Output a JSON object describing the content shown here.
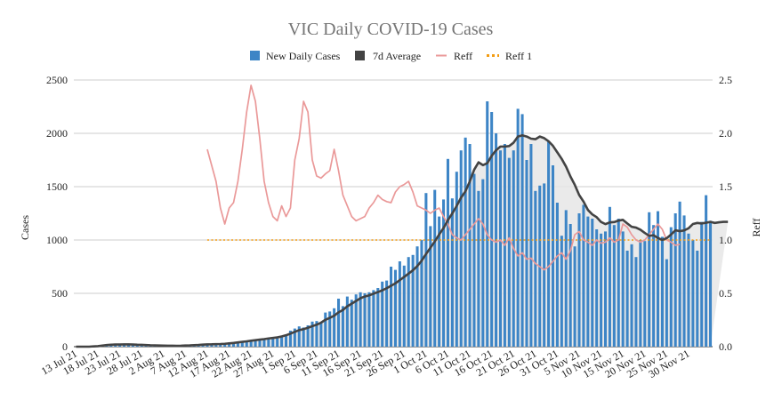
{
  "chart_data": {
    "type": "bar",
    "title": "VIC Daily COVID-19 Cases",
    "xlabel": "",
    "ylabel": "Cases",
    "y2label": "Reff",
    "ylim": [
      0,
      2500
    ],
    "y2lim": [
      0,
      2.5
    ],
    "y_ticks": [
      "0",
      "500",
      "1000",
      "1500",
      "2000",
      "2500"
    ],
    "y2_ticks": [
      "0.0",
      "0.5",
      "1.0",
      "1.5",
      "2.0",
      "2.5"
    ],
    "start_date": "13 Jul 21",
    "x_tick_labels": [
      "13 Jul 21",
      "18 Jul 21",
      "23 Jul 21",
      "28 Jul 21",
      "2 Aug 21",
      "7 Aug 21",
      "12 Aug 21",
      "17 Aug 21",
      "22 Aug 21",
      "27 Aug 21",
      "1 Sep 21",
      "6 Sep 21",
      "11 Sep 21",
      "16 Sep 21",
      "21 Sep 21",
      "26 Sep 21",
      "1 Oct 21",
      "6 Oct 21",
      "11 Oct 21",
      "16 Oct 21",
      "21 Oct 21",
      "26 Oct 21",
      "31 Oct 21",
      "5 Nov 21",
      "10 Nov 21",
      "15 Nov 21",
      "20 Nov 21",
      "25 Nov 21",
      "30 Nov 21"
    ],
    "x_tick_step_days": 5,
    "legend": [
      "New Daily Cases",
      "7d Average",
      "Reff",
      "Reff 1"
    ],
    "colors": {
      "bars": "#3d85c6",
      "avg": "#434343",
      "reff": "#ea9999",
      "reff1": "#f39c12",
      "fill": "#e6e6e6",
      "grid": "#cccccc",
      "title": "#757575"
    },
    "series": [
      {
        "name": "New Daily Cases",
        "values": [
          0,
          0,
          0,
          0,
          3,
          5,
          10,
          15,
          20,
          25,
          22,
          18,
          20,
          15,
          12,
          10,
          15,
          8,
          5,
          5,
          10,
          8,
          3,
          5,
          8,
          12,
          20,
          15,
          18,
          22,
          25,
          21,
          24,
          25,
          30,
          40,
          38,
          45,
          50,
          55,
          60,
          57,
          65,
          70,
          72,
          80,
          78,
          95,
          110,
          150,
          170,
          190,
          180,
          200,
          235,
          240,
          220,
          320,
          330,
          360,
          450,
          380,
          470,
          440,
          490,
          510,
          500,
          510,
          530,
          550,
          610,
          620,
          750,
          720,
          800,
          760,
          840,
          860,
          940,
          1000,
          1440,
          1130,
          1470,
          1220,
          1380,
          1760,
          1390,
          1640,
          1840,
          1960,
          1900,
          1620,
          1460,
          1570,
          2300,
          2200,
          2000,
          1840,
          1900,
          1770,
          1840,
          2230,
          2180,
          1750,
          1900,
          1460,
          1510,
          1530,
          1920,
          1700,
          1350,
          1040,
          1280,
          1150,
          940,
          1250,
          1330,
          1220,
          1200,
          1100,
          1060,
          1080,
          1310,
          1140,
          1200,
          1080,
          900,
          960,
          840,
          1000,
          990,
          1260,
          1140,
          1270,
          1030,
          820,
          1120,
          1250,
          1360,
          1230,
          1060,
          1000,
          900,
          1170,
          1420,
          1180
        ]
      },
      {
        "name": "7d Average",
        "values": [
          0,
          0,
          0,
          0,
          3,
          5,
          10,
          15,
          18,
          20,
          20,
          21,
          21,
          20,
          18,
          17,
          15,
          13,
          12,
          11,
          10,
          9,
          9,
          8,
          9,
          11,
          12,
          14,
          16,
          19,
          21,
          22,
          24,
          25,
          27,
          31,
          35,
          40,
          45,
          50,
          56,
          61,
          66,
          71,
          77,
          82,
          87,
          96,
          107,
          122,
          139,
          155,
          164,
          177,
          192,
          206,
          225,
          252,
          270,
          290,
          322,
          344,
          378,
          403,
          428,
          454,
          470,
          481,
          497,
          512,
          528,
          548,
          571,
          594,
          624,
          654,
          685,
          716,
          756,
          806,
          869,
          927,
          987,
          1052,
          1112,
          1186,
          1249,
          1320,
          1397,
          1456,
          1549,
          1659,
          1728,
          1702,
          1720,
          1789,
          1841,
          1876,
          1876,
          1881,
          1912,
          1970,
          1981,
          1970,
          1950,
          1945,
          1970,
          1955,
          1926,
          1883,
          1822,
          1761,
          1688,
          1596,
          1517,
          1422,
          1360,
          1282,
          1240,
          1214,
          1169,
          1149,
          1165,
          1168,
          1182,
          1189,
          1155,
          1124,
          1116,
          1096,
          1066,
          1039,
          1045,
          1019,
          1001,
          1017,
          1051,
          1091,
          1083,
          1090,
          1110,
          1150,
          1160,
          1155,
          1162,
          1170,
          1160,
          1166,
          1170,
          1170
        ]
      },
      {
        "name": "Reff",
        "values": [
          null,
          null,
          null,
          null,
          null,
          null,
          null,
          null,
          null,
          null,
          null,
          null,
          null,
          null,
          null,
          null,
          null,
          null,
          null,
          null,
          null,
          null,
          null,
          null,
          null,
          null,
          null,
          null,
          null,
          null,
          1.85,
          1.7,
          1.55,
          1.3,
          1.15,
          1.3,
          1.35,
          1.55,
          1.85,
          2.2,
          2.45,
          2.3,
          1.95,
          1.55,
          1.35,
          1.22,
          1.18,
          1.32,
          1.22,
          1.3,
          1.75,
          1.95,
          2.3,
          2.2,
          1.75,
          1.6,
          1.58,
          1.62,
          1.65,
          1.85,
          1.65,
          1.42,
          1.32,
          1.22,
          1.18,
          1.2,
          1.22,
          1.3,
          1.35,
          1.42,
          1.38,
          1.36,
          1.35,
          1.45,
          1.5,
          1.52,
          1.55,
          1.45,
          1.32,
          1.3,
          1.28,
          1.25,
          1.28,
          1.3,
          1.22,
          1.15,
          1.05,
          1.02,
          1.0,
          1.05,
          1.1,
          1.15,
          1.2,
          1.15,
          1.05,
          1.0,
          0.98,
          1.0,
          0.95,
          1.02,
          0.92,
          0.85,
          0.88,
          0.82,
          0.83,
          0.78,
          0.75,
          0.72,
          0.75,
          0.8,
          0.85,
          0.88,
          0.82,
          0.9,
          1.05,
          1.08,
          1.0,
          0.98,
          0.95,
          1.0,
          0.97,
          0.98,
          1.02,
          0.98,
          1.0,
          1.15,
          1.12,
          1.05,
          1.0,
          0.98,
          1.0,
          1.05,
          1.1,
          1.15,
          1.1,
          1.0,
          0.98,
          0.95,
          0.96
        ]
      },
      {
        "name": "Reff 1",
        "values": [
          1,
          1
        ]
      }
    ]
  }
}
